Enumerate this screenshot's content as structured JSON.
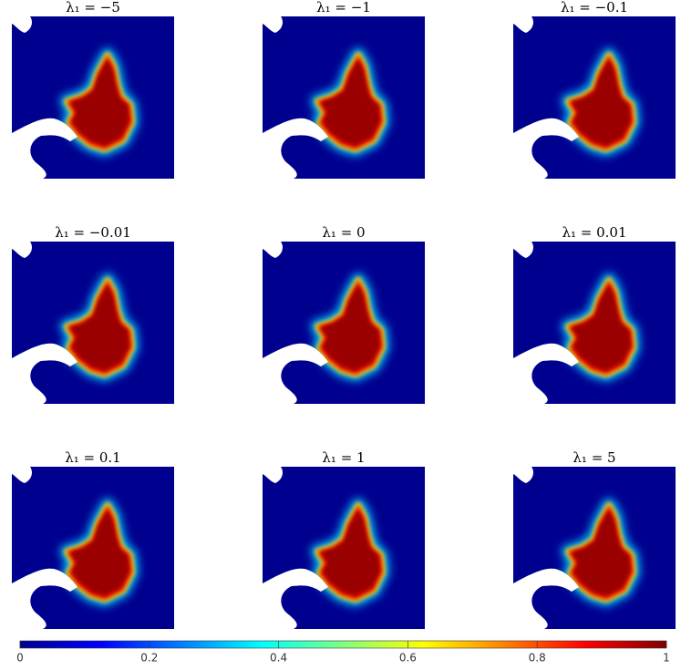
{
  "panels": [
    {
      "title": "λ₁ = −5"
    },
    {
      "title": "λ₁ = −1"
    },
    {
      "title": "λ₁ = −0.1"
    },
    {
      "title": "λ₁ = −0.01"
    },
    {
      "title": "λ₁ = 0"
    },
    {
      "title": "λ₁ = 0.01"
    },
    {
      "title": "λ₁ = 0.1"
    },
    {
      "title": "λ₁ = 1"
    },
    {
      "title": "λ₁ = 5"
    }
  ],
  "colorbar": {
    "type": "colorbar",
    "xlim": [
      0,
      1
    ],
    "xticks": [
      0,
      0.2,
      0.4,
      0.6,
      0.8,
      1
    ],
    "colors": [
      "#00008f",
      "#0000ff",
      "#00ffff",
      "#ffff00",
      "#ff0000",
      "#800000"
    ]
  }
}
